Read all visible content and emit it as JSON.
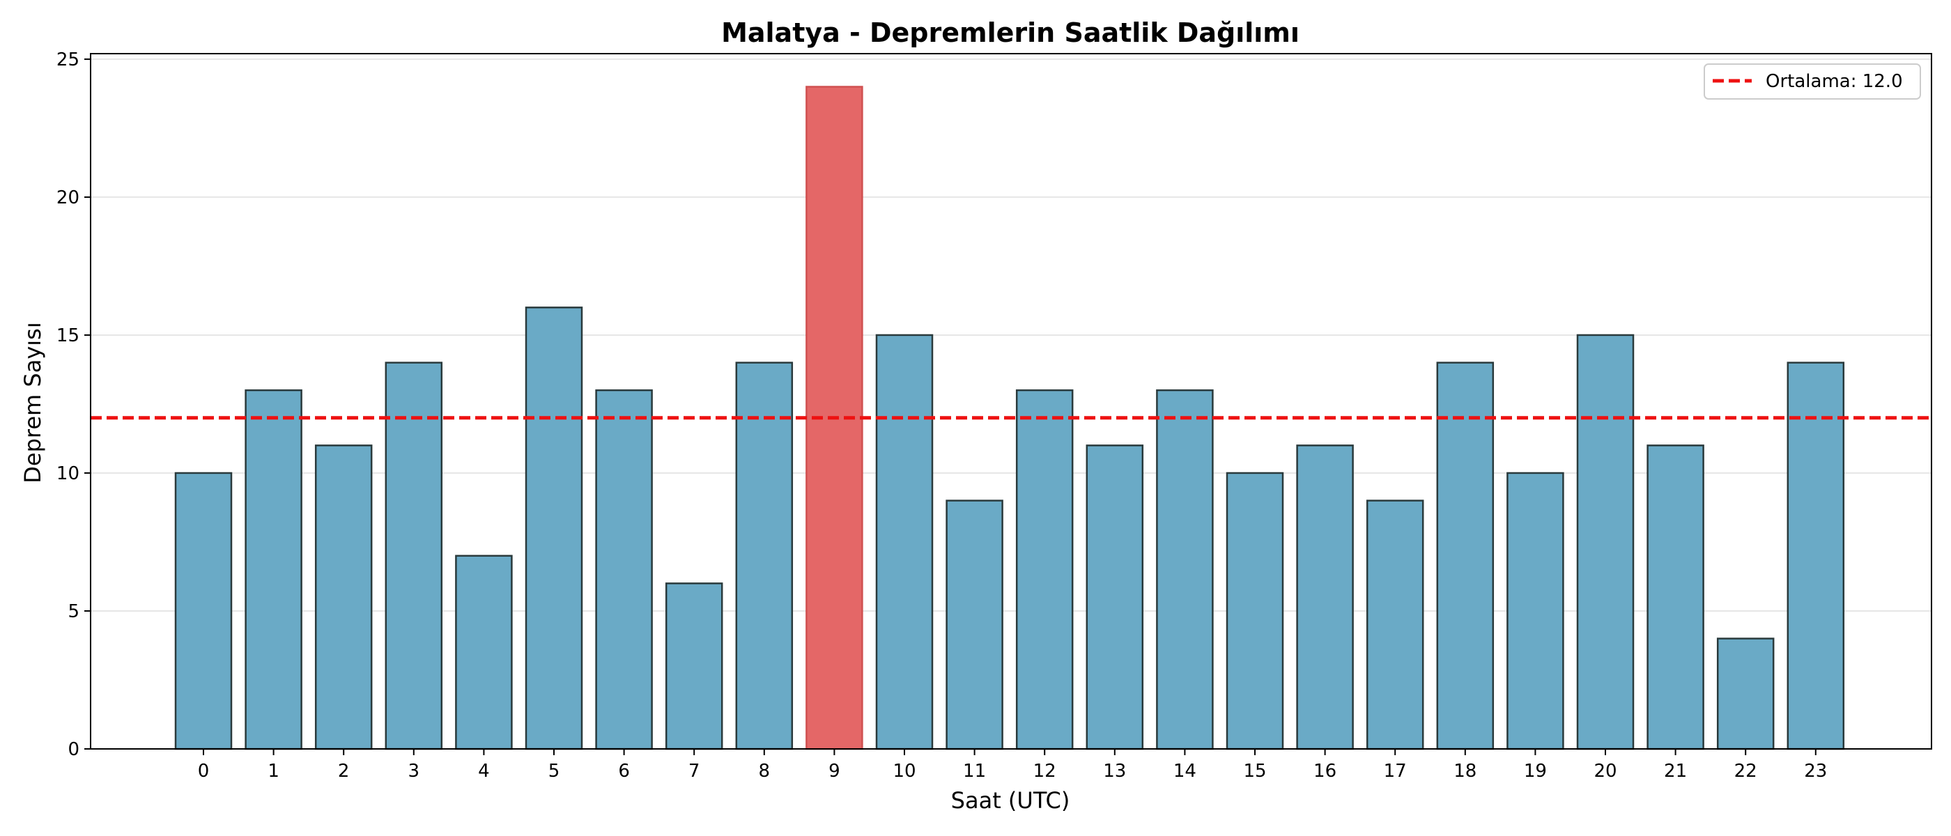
{
  "chart_data": {
    "type": "bar",
    "title": "Malatya - Depremlerin Saatlik Dağılımı",
    "xlabel": "Saat (UTC)",
    "ylabel": "Deprem Sayısı",
    "categories": [
      "0",
      "1",
      "2",
      "3",
      "4",
      "5",
      "6",
      "7",
      "8",
      "9",
      "10",
      "11",
      "12",
      "13",
      "14",
      "15",
      "16",
      "17",
      "18",
      "19",
      "20",
      "21",
      "22",
      "23"
    ],
    "values": [
      10,
      13,
      11,
      14,
      7,
      16,
      13,
      6,
      14,
      24,
      15,
      9,
      13,
      11,
      13,
      10,
      11,
      9,
      14,
      10,
      15,
      11,
      4,
      14
    ],
    "highlight_index": 9,
    "ylim": [
      0,
      25.2
    ],
    "yticks": [
      0,
      5,
      10,
      15,
      20,
      25
    ],
    "grid": "horizontal",
    "mean_line": {
      "value": 12.0,
      "label": "Ortalama: 12.0",
      "color": "#ee1111",
      "style": "dashed"
    },
    "legend_position": "top-right",
    "colors": {
      "bar": "#6aaac6",
      "highlight": "#e46767",
      "edge": "#2a3a3c"
    }
  }
}
